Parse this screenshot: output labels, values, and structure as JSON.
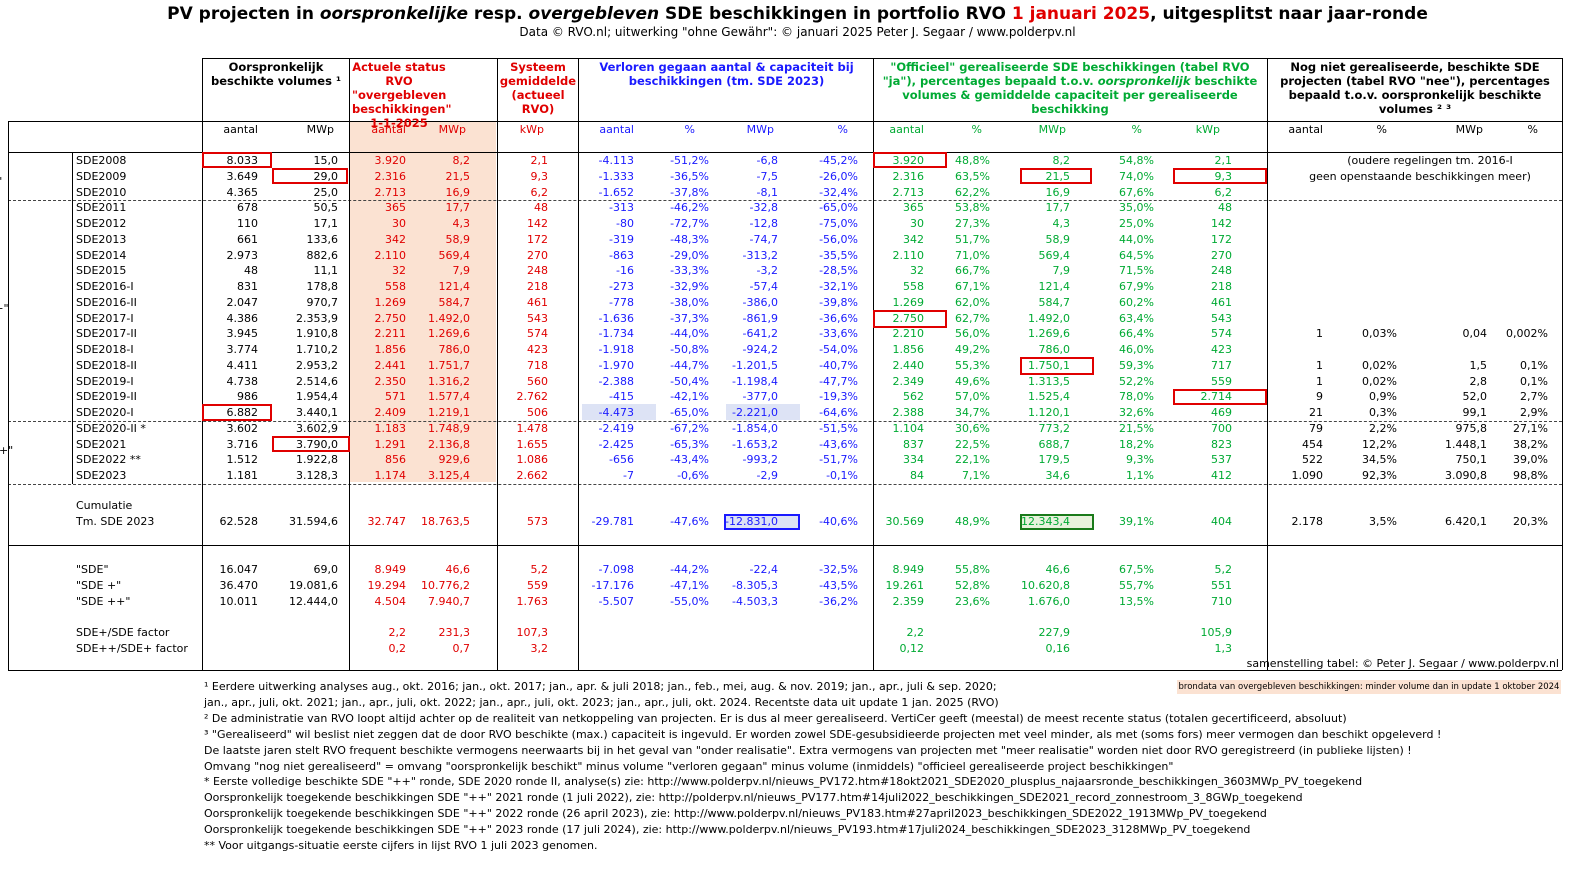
{
  "title": {
    "p1": "PV projecten in ",
    "p2": "oorspronkelijke",
    "p3": " resp. ",
    "p4": "overgebleven",
    "p5": " SDE beschikkingen in portfolio RVO ",
    "p6": "1 januari 2025",
    "p7": ", uitgesplitst naar jaar-ronde"
  },
  "subtitle": "Data © RVO.nl; uitwerking \"ohne Gewähr\": © januari 2025 Peter J. Segaar / www.polderpv.nl",
  "headers": {
    "orig": "Oorspronkelijk beschikte volumes ¹",
    "actual": "Actuele status RVO \"overgebleven beschikkingen\" 1-1-2025",
    "system": "Systeem gemiddelde (actueel RVO)",
    "lost": "Verloren gegaan aantal & capaciteit bij beschikkingen (tm. SDE 2023)",
    "realized_p1": "\"Officieel\" gerealiseerde SDE beschikkingen (tabel RVO \"ja\"), percentages bepaald t.o.v. ",
    "realized_p2": "oorspronkelijk",
    "realized_p3": " beschikte volumes & gemiddelde capaciteit per gerealiseerde beschikking",
    "notreal": "Nog niet gerealiseerde, beschikte SDE projecten (tabel RVO \"nee\"), percentages bepaald t.o.v. oorspronkelijk beschikte volumes ² ³"
  },
  "subheaders": [
    "aantal",
    "MWp",
    "aantal",
    "MWp",
    "kWp",
    "aantal",
    "%",
    "MWp",
    "%",
    "aantal",
    "%",
    "MWp",
    "%",
    "kWp",
    "aantal",
    "%",
    "MWp",
    "%"
  ],
  "groups": [
    "\"SDE\"",
    "\"SDE +\"",
    "\"SDE ++\""
  ],
  "rows": [
    [
      "SDE2008",
      "8.033",
      "15,0",
      "3.920",
      "8,2",
      "2,1",
      "-4.113",
      "-51,2%",
      "-6,8",
      "-45,2%",
      "3.920",
      "48,8%",
      "8,2",
      "54,8%",
      "2,1",
      "",
      "",
      "",
      ""
    ],
    [
      "SDE2009",
      "3.649",
      "29,0",
      "2.316",
      "21,5",
      "9,3",
      "-1.333",
      "-36,5%",
      "-7,5",
      "-26,0%",
      "2.316",
      "63,5%",
      "21,5",
      "74,0%",
      "9,3",
      "",
      "",
      "",
      ""
    ],
    [
      "SDE2010",
      "4.365",
      "25,0",
      "2.713",
      "16,9",
      "6,2",
      "-1.652",
      "-37,8%",
      "-8,1",
      "-32,4%",
      "2.713",
      "62,2%",
      "16,9",
      "67,6%",
      "6,2",
      "",
      "",
      "",
      ""
    ],
    [
      "SDE2011",
      "678",
      "50,5",
      "365",
      "17,7",
      "48",
      "-313",
      "-46,2%",
      "-32,8",
      "-65,0%",
      "365",
      "53,8%",
      "17,7",
      "35,0%",
      "48",
      "",
      "",
      "",
      ""
    ],
    [
      "SDE2012",
      "110",
      "17,1",
      "30",
      "4,3",
      "142",
      "-80",
      "-72,7%",
      "-12,8",
      "-75,0%",
      "30",
      "27,3%",
      "4,3",
      "25,0%",
      "142",
      "",
      "",
      "",
      ""
    ],
    [
      "SDE2013",
      "661",
      "133,6",
      "342",
      "58,9",
      "172",
      "-319",
      "-48,3%",
      "-74,7",
      "-56,0%",
      "342",
      "51,7%",
      "58,9",
      "44,0%",
      "172",
      "",
      "",
      "",
      ""
    ],
    [
      "SDE2014",
      "2.973",
      "882,6",
      "2.110",
      "569,4",
      "270",
      "-863",
      "-29,0%",
      "-313,2",
      "-35,5%",
      "2.110",
      "71,0%",
      "569,4",
      "64,5%",
      "270",
      "",
      "",
      "",
      ""
    ],
    [
      "SDE2015",
      "48",
      "11,1",
      "32",
      "7,9",
      "248",
      "-16",
      "-33,3%",
      "-3,2",
      "-28,5%",
      "32",
      "66,7%",
      "7,9",
      "71,5%",
      "248",
      "",
      "",
      "",
      ""
    ],
    [
      "SDE2016-I",
      "831",
      "178,8",
      "558",
      "121,4",
      "218",
      "-273",
      "-32,9%",
      "-57,4",
      "-32,1%",
      "558",
      "67,1%",
      "121,4",
      "67,9%",
      "218",
      "",
      "",
      "",
      ""
    ],
    [
      "SDE2016-II",
      "2.047",
      "970,7",
      "1.269",
      "584,7",
      "461",
      "-778",
      "-38,0%",
      "-386,0",
      "-39,8%",
      "1.269",
      "62,0%",
      "584,7",
      "60,2%",
      "461",
      "",
      "",
      "",
      ""
    ],
    [
      "SDE2017-I",
      "4.386",
      "2.353,9",
      "2.750",
      "1.492,0",
      "543",
      "-1.636",
      "-37,3%",
      "-861,9",
      "-36,6%",
      "2.750",
      "62,7%",
      "1.492,0",
      "63,4%",
      "543",
      "",
      "",
      "",
      ""
    ],
    [
      "SDE2017-II",
      "3.945",
      "1.910,8",
      "2.211",
      "1.269,6",
      "574",
      "-1.734",
      "-44,0%",
      "-641,2",
      "-33,6%",
      "2.210",
      "56,0%",
      "1.269,6",
      "66,4%",
      "574",
      "1",
      "0,03%",
      "0,04",
      "0,002%"
    ],
    [
      "SDE2018-I",
      "3.774",
      "1.710,2",
      "1.856",
      "786,0",
      "423",
      "-1.918",
      "-50,8%",
      "-924,2",
      "-54,0%",
      "1.856",
      "49,2%",
      "786,0",
      "46,0%",
      "423",
      "",
      "",
      "",
      ""
    ],
    [
      "SDE2018-II",
      "4.411",
      "2.953,2",
      "2.441",
      "1.751,7",
      "718",
      "-1.970",
      "-44,7%",
      "-1.201,5",
      "-40,7%",
      "2.440",
      "55,3%",
      "1.750,1",
      "59,3%",
      "717",
      "1",
      "0,02%",
      "1,5",
      "0,1%"
    ],
    [
      "SDE2019-I",
      "4.738",
      "2.514,6",
      "2.350",
      "1.316,2",
      "560",
      "-2.388",
      "-50,4%",
      "-1.198,4",
      "-47,7%",
      "2.349",
      "49,6%",
      "1.313,5",
      "52,2%",
      "559",
      "1",
      "0,02%",
      "2,8",
      "0,1%"
    ],
    [
      "SDE2019-II",
      "986",
      "1.954,4",
      "571",
      "1.577,4",
      "2.762",
      "-415",
      "-42,1%",
      "-377,0",
      "-19,3%",
      "562",
      "57,0%",
      "1.525,4",
      "78,0%",
      "2.714",
      "9",
      "0,9%",
      "52,0",
      "2,7%"
    ],
    [
      "SDE2020-I",
      "6.882",
      "3.440,1",
      "2.409",
      "1.219,1",
      "506",
      "-4.473",
      "-65,0%",
      "-2.221,0",
      "-64,6%",
      "2.388",
      "34,7%",
      "1.120,1",
      "32,6%",
      "469",
      "21",
      "0,3%",
      "99,1",
      "2,9%"
    ],
    [
      "SDE2020-II *",
      "3.602",
      "3.602,9",
      "1.183",
      "1.748,9",
      "1.478",
      "-2.419",
      "-67,2%",
      "-1.854,0",
      "-51,5%",
      "1.104",
      "30,6%",
      "773,2",
      "21,5%",
      "700",
      "79",
      "2,2%",
      "975,8",
      "27,1%"
    ],
    [
      "SDE2021",
      "3.716",
      "3.790,0",
      "1.291",
      "2.136,8",
      "1.655",
      "-2.425",
      "-65,3%",
      "-1.653,2",
      "-43,6%",
      "837",
      "22,5%",
      "688,7",
      "18,2%",
      "823",
      "454",
      "12,2%",
      "1.448,1",
      "38,2%"
    ],
    [
      "SDE2022 **",
      "1.512",
      "1.922,8",
      "856",
      "929,6",
      "1.086",
      "-656",
      "-43,4%",
      "-993,2",
      "-51,7%",
      "334",
      "22,1%",
      "179,5",
      "9,3%",
      "537",
      "522",
      "34,5%",
      "750,1",
      "39,0%"
    ],
    [
      "SDE2023",
      "1.181",
      "3.128,3",
      "1.174",
      "3.125,4",
      "2.662",
      "-7",
      "-0,6%",
      "-2,9",
      "-0,1%",
      "84",
      "7,1%",
      "34,6",
      "1,1%",
      "412",
      "1.090",
      "92,3%",
      "3.090,8",
      "98,8%"
    ]
  ],
  "old_note_line1": "(oudere regelingen tm. 2016-I",
  "old_note_line2": "geen openstaande beschikkingen meer)",
  "cumul_label1": "Cumulatie",
  "cumul_label2": "Tm. SDE 2023",
  "cumul": [
    "62.528",
    "31.594,6",
    "32.747",
    "18.763,5",
    "573",
    "-29.781",
    "-47,6%",
    "-12.831,0",
    "-40,6%",
    "30.569",
    "48,9%",
    "12.343,4",
    "39,1%",
    "404",
    "2.178",
    "3,5%",
    "6.420,1",
    "20,3%"
  ],
  "summary": [
    [
      "\"SDE\"",
      "16.047",
      "69,0",
      "8.949",
      "46,6",
      "5,2",
      "-7.098",
      "-44,2%",
      "-22,4",
      "-32,5%",
      "8.949",
      "55,8%",
      "46,6",
      "67,5%",
      "5,2"
    ],
    [
      "\"SDE +\"",
      "36.470",
      "19.081,6",
      "19.294",
      "10.776,2",
      "559",
      "-17.176",
      "-47,1%",
      "-8.305,3",
      "-43,5%",
      "19.261",
      "52,8%",
      "10.620,8",
      "55,7%",
      "551"
    ],
    [
      "\"SDE ++\"",
      "10.011",
      "12.444,0",
      "4.504",
      "7.940,7",
      "1.763",
      "-5.507",
      "-55,0%",
      "-4.503,3",
      "-36,2%",
      "2.359",
      "23,6%",
      "1.676,0",
      "13,5%",
      "710"
    ]
  ],
  "factors": [
    [
      "SDE+/SDE factor",
      "2,2",
      "231,3",
      "107,3",
      "2,2",
      "227,9",
      "105,9"
    ],
    [
      "SDE++/SDE+ factor",
      "0,2",
      "0,7",
      "3,2",
      "0,12",
      "0,16",
      "1,3"
    ]
  ],
  "credit": "samenstelling tabel: © Peter J. Segaar / www.polderpv.nl",
  "brondata": "brondata van overgebleven beschikkingen: minder volume dan in update 1 oktober 2024",
  "notes": [
    "¹ Eerdere uitwerking analyses aug., okt. 2016; jan., okt.  2017; jan., apr. & juli 2018; jan., feb., mei, aug. & nov. 2019; jan., apr., juli & sep. 2020;",
    "   jan., apr., juli, okt. 2021; jan., apr., juli, okt. 2022; jan., apr., juli, okt. 2023; jan., apr., juli, okt. 2024. Recentste data uit update 1 jan. 2025 (RVO)",
    "² De administratie van RVO loopt altijd achter op de realiteit van netkoppeling van projecten. Er is dus al meer gerealiseerd. VertiCer geeft (meestal) de meest recente status (totalen gecertificeerd, absoluut)",
    "³ \"Gerealiseerd\" wil beslist niet zeggen dat de door RVO beschikte (max.) capaciteit is ingevuld. Er worden zowel SDE-gesubsidieerde projecten met veel minder, als met (soms fors) meer  vermogen dan beschikt opgeleverd !",
    "De laatste jaren stelt RVO frequent beschikte vermogens neerwaarts bij in het geval van \"onder realisatie\". Extra vermogens van projecten met \"meer realisatie\" worden niet door RVO geregistreerd (in publieke lijsten) !",
    "Omvang \"nog niet gerealiseerd\" = omvang \"oorspronkelijk beschikt\" minus volume \"verloren gegaan\" minus volume (inmiddels) \"officieel gerealiseerde project beschikkingen\"",
    "* Eerste volledige beschikte SDE \"++\" ronde, SDE 2020 ronde II, analyse(s) zie: http://www.polderpv.nl/nieuws_PV172.htm#18okt2021_SDE2020_plusplus_najaarsronde_beschikkingen_3603MWp_PV_toegekend",
    "Oorspronkelijk toegekende beschikkingen SDE \"++\" 2021 ronde (1 juli 2022), zie: http://polderpv.nl/nieuws_PV177.htm#14juli2022_beschikkingen_SDE2021_record_zonnestroom_3_8GWp_toegekend",
    "Oorspronkelijk toegekende beschikkingen SDE \"++\" 2022 ronde (26 april 2023), zie: http://www.polderpv.nl/nieuws_PV183.htm#27april2023_beschikkingen_SDE2022_1913MWp_PV_toegekend",
    "Oorspronkelijk toegekende beschikkingen SDE \"++\" 2023 ronde (17 juli 2024), zie: http://www.polderpv.nl/nieuws_PV193.htm#17juli2024_beschikkingen_SDE2023_3128MWp_PV_toegekend",
    "** Voor uitgangs-situatie eerste cijfers in lijst RVO 1 juli 2023 genomen."
  ]
}
